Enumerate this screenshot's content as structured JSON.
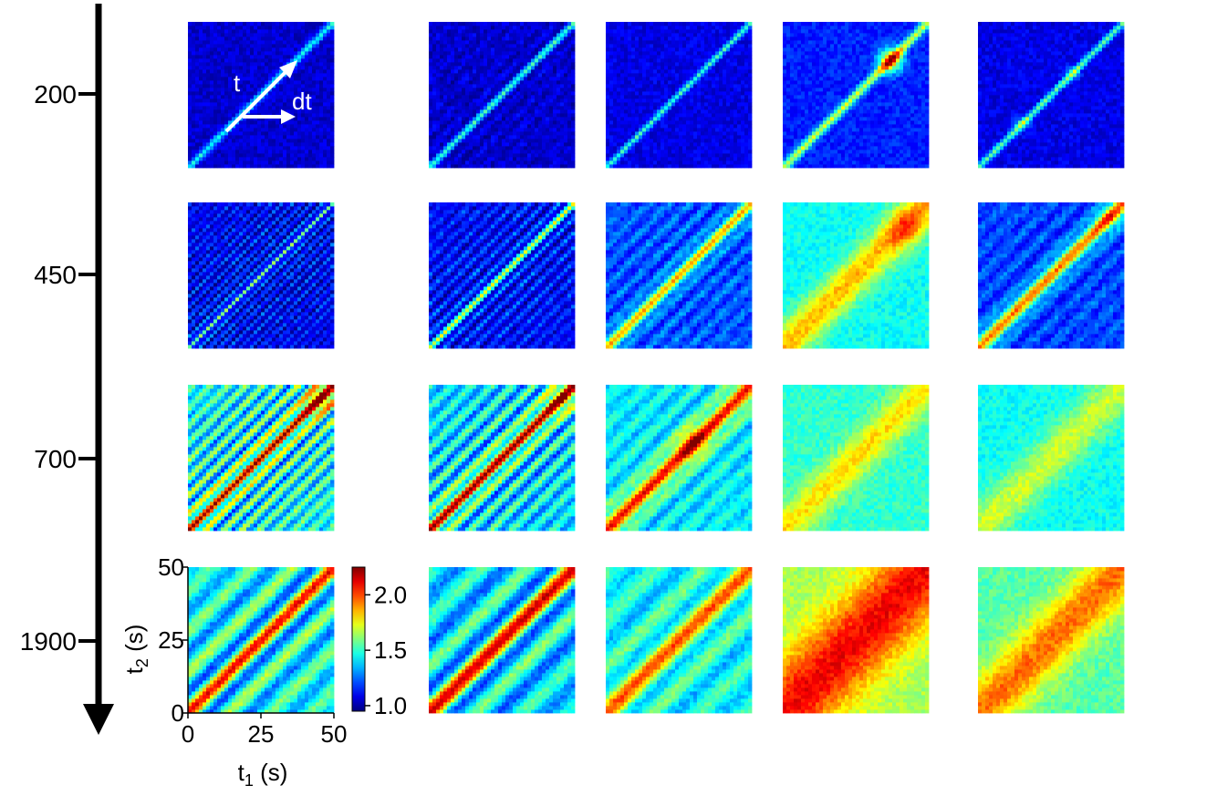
{
  "chart_data": {
    "type": "heatmap",
    "layout": "grid of correlation matrices",
    "rows": 4,
    "cols": 5,
    "row_axis": {
      "tick_labels": [
        "200",
        "450",
        "700",
        "1900"
      ],
      "direction": "downward arrow"
    },
    "x_axis": {
      "label": "t",
      "label_sub": "1",
      "unit": "(s)",
      "tick_labels": [
        "0",
        "25",
        "50"
      ],
      "range": [
        0,
        50
      ]
    },
    "y_axis": {
      "label": "t",
      "label_sub": "2",
      "unit": "(s)",
      "tick_labels": [
        "0",
        "25",
        "50"
      ],
      "range": [
        0,
        50
      ]
    },
    "colorbar": {
      "tick_labels": [
        "2.0",
        "1.5",
        "1.0"
      ],
      "range": [
        0.95,
        2.25
      ],
      "colormap": "jet"
    },
    "annotations": {
      "diagonal_label": "t",
      "offdiagonal_label": "dt"
    },
    "panels": [
      [
        {
          "background": 1.05,
          "diagonal_peak": 1.45,
          "diagonal_width": 1.2,
          "stripe_amplitude": 0.0,
          "stripe_period": 0,
          "hotspots": []
        },
        {
          "background": 1.05,
          "diagonal_peak": 1.45,
          "diagonal_width": 1.2,
          "stripe_amplitude": 0.05,
          "stripe_period": 6,
          "hotspots": []
        },
        {
          "background": 1.08,
          "diagonal_peak": 1.5,
          "diagonal_width": 1.0,
          "stripe_amplitude": 0.0,
          "stripe_period": 0,
          "hotspots": []
        },
        {
          "background": 1.15,
          "diagonal_peak": 1.7,
          "diagonal_width": 1.5,
          "stripe_amplitude": 0.0,
          "stripe_period": 0,
          "hotspots": [
            {
              "t": 37,
              "amp": 0.65,
              "radius": 3
            }
          ]
        },
        {
          "background": 1.08,
          "diagonal_peak": 1.55,
          "diagonal_width": 1.1,
          "stripe_amplitude": 0.0,
          "stripe_period": 0,
          "hotspots": [
            {
              "t": 15,
              "amp": 0.2,
              "radius": 2
            },
            {
              "t": 32,
              "amp": 0.2,
              "radius": 2
            }
          ]
        }
      ],
      [
        {
          "background": 1.1,
          "diagonal_peak": 1.4,
          "diagonal_width": 1.2,
          "stripe_amplitude": 0.2,
          "stripe_period": 3.5,
          "hotspots": []
        },
        {
          "background": 1.12,
          "diagonal_peak": 1.55,
          "diagonal_width": 1.5,
          "stripe_amplitude": 0.18,
          "stripe_period": 5,
          "hotspots": []
        },
        {
          "background": 1.22,
          "diagonal_peak": 1.75,
          "diagonal_width": 2.5,
          "stripe_amplitude": 0.12,
          "stripe_period": 7,
          "hotspots": []
        },
        {
          "background": 1.45,
          "diagonal_peak": 1.85,
          "diagonal_width": 6,
          "stripe_amplitude": 0.0,
          "stripe_period": 0,
          "hotspots": [
            {
              "t": 42,
              "amp": 0.2,
              "radius": 5
            }
          ]
        },
        {
          "background": 1.2,
          "diagonal_peak": 1.85,
          "diagonal_width": 3,
          "stripe_amplitude": 0.1,
          "stripe_period": 8,
          "hotspots": [
            {
              "t": 45,
              "amp": 0.2,
              "radius": 3
            }
          ]
        }
      ],
      [
        {
          "background": 1.45,
          "diagonal_peak": 1.9,
          "diagonal_width": 3,
          "stripe_amplitude": 0.35,
          "stripe_period": 6,
          "hotspots": [
            {
              "t": 45,
              "amp": 0.3,
              "radius": 4
            }
          ]
        },
        {
          "background": 1.4,
          "diagonal_peak": 1.95,
          "diagonal_width": 3,
          "stripe_amplitude": 0.3,
          "stripe_period": 7,
          "hotspots": [
            {
              "t": 45,
              "amp": 0.2,
              "radius": 4
            }
          ]
        },
        {
          "background": 1.42,
          "diagonal_peak": 1.95,
          "diagonal_width": 4,
          "stripe_amplitude": 0.15,
          "stripe_period": 9,
          "hotspots": [
            {
              "t": 30,
              "amp": 0.25,
              "radius": 4
            }
          ]
        },
        {
          "background": 1.5,
          "diagonal_peak": 1.8,
          "diagonal_width": 6,
          "stripe_amplitude": 0.0,
          "stripe_period": 0,
          "hotspots": []
        },
        {
          "background": 1.45,
          "diagonal_peak": 1.7,
          "diagonal_width": 7,
          "stripe_amplitude": 0.0,
          "stripe_period": 0,
          "hotspots": []
        }
      ],
      [
        {
          "background": 1.45,
          "diagonal_peak": 1.8,
          "diagonal_width": 3,
          "stripe_amplitude": 0.3,
          "stripe_period": 14,
          "hotspots": []
        },
        {
          "background": 1.4,
          "diagonal_peak": 1.85,
          "diagonal_width": 4,
          "stripe_amplitude": 0.3,
          "stripe_period": 16,
          "hotspots": []
        },
        {
          "background": 1.45,
          "diagonal_peak": 1.8,
          "diagonal_width": 5,
          "stripe_amplitude": 0.2,
          "stripe_period": 16,
          "hotspots": []
        },
        {
          "background": 1.65,
          "diagonal_peak": 2.1,
          "diagonal_width": 13,
          "stripe_amplitude": 0.0,
          "stripe_period": 0,
          "hotspots": []
        },
        {
          "background": 1.55,
          "diagonal_peak": 1.95,
          "diagonal_width": 9,
          "stripe_amplitude": 0.0,
          "stripe_period": 0,
          "hotspots": []
        }
      ]
    ]
  }
}
